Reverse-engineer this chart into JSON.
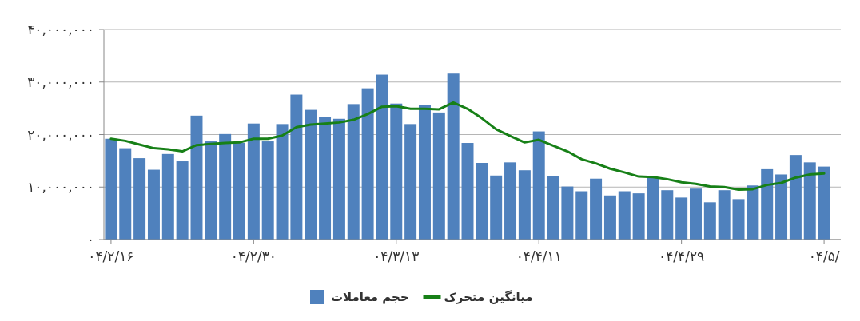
{
  "chart_data": {
    "type": "bar",
    "categories": [
      "۰۴/۲/۱۶",
      null,
      null,
      null,
      null,
      null,
      null,
      null,
      null,
      null,
      "۰۴/۲/۳۰",
      null,
      null,
      null,
      null,
      null,
      null,
      null,
      null,
      null,
      "۰۴/۳/۱۳",
      null,
      null,
      null,
      null,
      null,
      null,
      null,
      null,
      null,
      "۰۴/۴/۱۱",
      null,
      null,
      null,
      null,
      null,
      null,
      null,
      null,
      null,
      "۰۴/۴/۲۹",
      null,
      null,
      null,
      null,
      null,
      null,
      null,
      null,
      null,
      "۰۴/۵/"
    ],
    "series": [
      {
        "name": "حجم معاملات",
        "color": "#4f81bd",
        "values": [
          19200000,
          17400000,
          15500000,
          13300000,
          16300000,
          14900000,
          23600000,
          18700000,
          20100000,
          18400000,
          22100000,
          18700000,
          22000000,
          27600000,
          24700000,
          23300000,
          23000000,
          25800000,
          28800000,
          31400000,
          25900000,
          22000000,
          25700000,
          24200000,
          31600000,
          18400000,
          14600000,
          12200000,
          14700000,
          13200000,
          20600000,
          12100000,
          10100000,
          9200000,
          11600000,
          8400000,
          9200000,
          8800000,
          11800000,
          9400000,
          8000000,
          9700000,
          7100000,
          9400000,
          7700000,
          10300000,
          13400000,
          12400000,
          16100000,
          14700000,
          13900000
        ]
      },
      {
        "name": "میانگین متحرک",
        "type": "line",
        "color": "#178017",
        "values": [
          19200000,
          18800000,
          18100000,
          17400000,
          17200000,
          16800000,
          18000000,
          18200000,
          18400000,
          18500000,
          19200000,
          19200000,
          19800000,
          21400000,
          21900000,
          22100000,
          22300000,
          22800000,
          23900000,
          25300000,
          25400000,
          24900000,
          24900000,
          24800000,
          26100000,
          24900000,
          23100000,
          21000000,
          19700000,
          18500000,
          19000000,
          17900000,
          16800000,
          15300000,
          14500000,
          13500000,
          12800000,
          12000000,
          11900000,
          11500000,
          10900000,
          10600000,
          10100000,
          10000000,
          9500000,
          9600000,
          10400000,
          10800000,
          11800000,
          12400000,
          12600000
        ]
      }
    ],
    "ylim": [
      0,
      40000000
    ],
    "yticks": [
      {
        "value": 0,
        "label": "۰"
      },
      {
        "value": 10000000,
        "label": "۱۰,۰۰۰,۰۰۰"
      },
      {
        "value": 20000000,
        "label": "۲۰,۰۰۰,۰۰۰"
      },
      {
        "value": 30000000,
        "label": "۳۰,۰۰۰,۰۰۰"
      },
      {
        "value": 40000000,
        "label": "۴۰,۰۰۰,۰۰۰"
      }
    ],
    "grid": "y",
    "legend": "bottom"
  }
}
